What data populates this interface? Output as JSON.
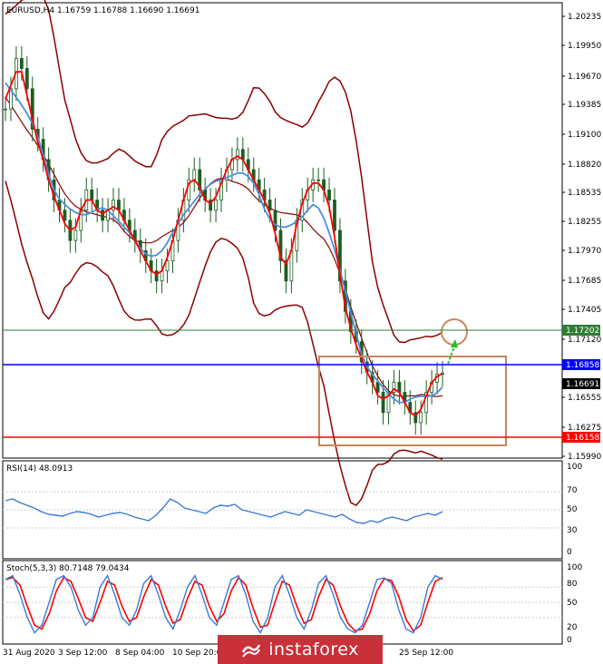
{
  "header": {
    "title": "EURUSD,H4  1.16759 1.16788 1.16690 1.16691"
  },
  "price_axis": {
    "ticks": [
      "1.20235",
      "1.19950",
      "1.19670",
      "1.19385",
      "1.19100",
      "1.18820",
      "1.18535",
      "1.18255",
      "1.17970",
      "1.17685",
      "1.17405",
      "1.17120",
      "1.16555",
      "1.16275",
      "1.15990"
    ]
  },
  "levels": {
    "green": {
      "value": "1.17202",
      "color": "#2e7d32"
    },
    "blue": {
      "value": "1.16858",
      "color": "#0000ff"
    },
    "current": {
      "value": "1.16691",
      "color": "#000000"
    },
    "red": {
      "value": "1.16158",
      "color": "#ff0000"
    }
  },
  "rsi": {
    "label": "RSI(14) 48.0913",
    "ticks_outer": [
      "100",
      "0"
    ],
    "ticks_inner": [
      "70",
      "50",
      "30"
    ],
    "color": "#3a7bd5"
  },
  "stoch": {
    "label": "Stoch(5,3,3) 80.7148 79.0434",
    "ticks_outer": [
      "100",
      "0"
    ],
    "ticks_inner": [
      "80",
      "50",
      "20"
    ],
    "main_color": "#3a7bd5",
    "signal_color": "#ff0000"
  },
  "time_axis": {
    "ticks": [
      "31 Aug 2020",
      "3 Sep 12:00",
      "8 Sep 04:00",
      "10 Sep 20:00",
      "25 Sep 12:00"
    ]
  },
  "watermark": {
    "text": "instaforex"
  },
  "chart_data": {
    "type": "candlestick",
    "title": "EURUSD,H4  1.16759 1.16788 1.16690 1.16691",
    "ylim": [
      1.1585,
      1.2035
    ],
    "close": [
      1.193,
      1.195,
      1.198,
      1.197,
      1.195,
      1.191,
      1.19,
      1.188,
      1.186,
      1.184,
      1.183,
      1.182,
      1.18,
      1.181,
      1.183,
      1.185,
      1.184,
      1.183,
      1.182,
      1.183,
      1.184,
      1.183,
      1.182,
      1.181,
      1.18,
      1.179,
      1.178,
      1.177,
      1.176,
      1.177,
      1.178,
      1.18,
      1.182,
      1.184,
      1.186,
      1.187,
      1.185,
      1.184,
      1.183,
      1.184,
      1.186,
      1.187,
      1.188,
      1.189,
      1.188,
      1.187,
      1.186,
      1.185,
      1.184,
      1.183,
      1.181,
      1.178,
      1.176,
      1.179,
      1.182,
      1.184,
      1.185,
      1.186,
      1.186,
      1.185,
      1.184,
      1.181,
      1.176,
      1.173,
      1.171,
      1.17,
      1.168,
      1.167,
      1.166,
      1.165,
      1.163,
      1.165,
      1.166,
      1.165,
      1.164,
      1.163,
      1.162,
      1.163,
      1.165,
      1.166,
      1.1668,
      1.1669
    ],
    "series": [
      {
        "name": "RSI(14)",
        "values": [
          60,
          62,
          58,
          55,
          52,
          48,
          45,
          44,
          43,
          46,
          48,
          47,
          45,
          42,
          44,
          46,
          47,
          45,
          42,
          40,
          38,
          44,
          52,
          62,
          58,
          52,
          50,
          48,
          46,
          52,
          55,
          54,
          56,
          50,
          48,
          46,
          44,
          42,
          45,
          48,
          46,
          44,
          50,
          48,
          46,
          44,
          42,
          45,
          40,
          36,
          35,
          38,
          36,
          40,
          42,
          40,
          38,
          42,
          44,
          46,
          44,
          48
        ],
        "color": "#3a7bd5"
      },
      {
        "name": "Stoch(5,3,3)",
        "values": [
          80,
          85,
          60,
          30,
          10,
          20,
          50,
          80,
          85,
          70,
          40,
          20,
          30,
          70,
          85,
          60,
          30,
          20,
          40,
          75,
          85,
          60,
          30,
          15,
          40,
          70,
          85,
          60,
          30,
          20,
          50,
          80,
          85,
          60,
          25,
          10,
          30,
          70,
          85,
          60,
          30,
          15,
          40,
          75,
          85,
          60,
          30,
          15,
          10,
          20,
          50,
          80,
          82,
          75,
          40,
          15,
          10,
          30,
          70,
          85,
          80
        ],
        "color": "#3a7bd5"
      }
    ]
  }
}
